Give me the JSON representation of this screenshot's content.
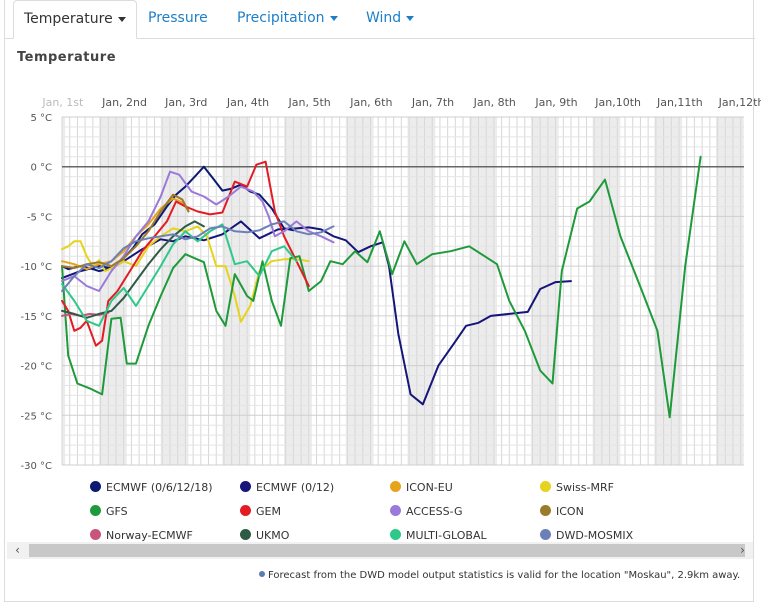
{
  "tabs": [
    {
      "label": "Temperature",
      "active": true,
      "dropdown": true
    },
    {
      "label": "Pressure",
      "active": false,
      "dropdown": false
    },
    {
      "label": "Precipitation",
      "active": false,
      "dropdown": true
    },
    {
      "label": "Wind",
      "active": false,
      "dropdown": true
    }
  ],
  "section_title": "Temperature",
  "chart_data": {
    "type": "line",
    "title": "",
    "xlabel": "",
    "ylabel": "",
    "x_tick_labels": [
      "Jan, 1st",
      "Jan, 2nd",
      "Jan, 3rd",
      "Jan, 4th",
      "Jan, 5th",
      "Jan, 6th",
      "Jan, 7th",
      "Jan, 8th",
      "Jan, 9th",
      "Jan,10th",
      "Jan,11th",
      "Jan,12th"
    ],
    "y_tick_labels": [
      "5 °C",
      "0 °C",
      "-5 °C",
      "-10 °C",
      "-15 °C",
      "-20 °C",
      "-25 °C",
      "-30 °C"
    ],
    "ylim": [
      -30,
      5
    ],
    "x_unit": "days since Jan 1st 00:00",
    "grid": true,
    "legend_placement": "bottom",
    "series": [
      {
        "name": "ECMWF (0/6/12/18)",
        "color": "#0c1a72",
        "values": [
          [
            1.0,
            -10.0
          ],
          [
            1.1,
            -10.3
          ],
          [
            1.3,
            -10.0
          ],
          [
            1.5,
            -10.3
          ],
          [
            1.6,
            -10.5
          ],
          [
            1.8,
            -10.2
          ],
          [
            2.0,
            -9.2
          ],
          [
            2.15,
            -8.2
          ],
          [
            2.3,
            -6.8
          ],
          [
            2.5,
            -5.8
          ],
          [
            2.7,
            -4.0
          ],
          [
            2.85,
            -2.8
          ],
          [
            3.0,
            -2.0
          ],
          [
            3.15,
            -1.0
          ],
          [
            3.3,
            0.0
          ],
          [
            3.45,
            -1.2
          ],
          [
            3.6,
            -2.4
          ],
          [
            3.75,
            -2.2
          ],
          [
            3.9,
            -1.8
          ],
          [
            4.05,
            -2.5
          ],
          [
            4.2,
            -2.8
          ],
          [
            4.4,
            -4.2
          ],
          [
            4.6,
            -6.2
          ],
          [
            4.75,
            -6.4
          ]
        ]
      },
      {
        "name": "ECMWF (0/12)",
        "color": "#15157a",
        "values": [
          [
            1.0,
            -11.2
          ],
          [
            1.3,
            -10.5
          ],
          [
            1.6,
            -10.0
          ],
          [
            1.8,
            -10.2
          ],
          [
            2.0,
            -9.5
          ],
          [
            2.3,
            -8.3
          ],
          [
            2.6,
            -7.3
          ],
          [
            2.8,
            -7.5
          ],
          [
            3.0,
            -7.0
          ],
          [
            3.3,
            -7.4
          ],
          [
            3.6,
            -6.8
          ],
          [
            3.9,
            -5.5
          ],
          [
            4.2,
            -7.2
          ],
          [
            4.5,
            -6.3
          ],
          [
            4.8,
            -6.2
          ],
          [
            5.0,
            -6.1
          ],
          [
            5.2,
            -6.3
          ],
          [
            5.4,
            -7.0
          ],
          [
            5.6,
            -7.4
          ],
          [
            5.8,
            -8.6
          ],
          [
            6.0,
            -8.0
          ],
          [
            6.2,
            -7.6
          ],
          [
            6.3,
            -10.0
          ],
          [
            6.45,
            -16.8
          ],
          [
            6.65,
            -22.9
          ],
          [
            6.85,
            -23.9
          ],
          [
            7.1,
            -20.0
          ],
          [
            7.35,
            -17.8
          ],
          [
            7.55,
            -16.0
          ],
          [
            7.75,
            -15.7
          ],
          [
            7.95,
            -15.0
          ],
          [
            8.25,
            -14.8
          ],
          [
            8.55,
            -14.6
          ],
          [
            8.75,
            -12.3
          ],
          [
            9.0,
            -11.6
          ],
          [
            9.25,
            -11.5
          ]
        ]
      },
      {
        "name": "ICON-EU",
        "color": "#e6a31b",
        "values": [
          [
            1.0,
            -9.5
          ],
          [
            1.2,
            -9.8
          ],
          [
            1.4,
            -10.3
          ],
          [
            1.6,
            -9.8
          ],
          [
            1.8,
            -9.5
          ],
          [
            2.0,
            -8.5
          ],
          [
            2.2,
            -7.0
          ],
          [
            2.4,
            -5.8
          ],
          [
            2.6,
            -4.2
          ],
          [
            2.8,
            -3.2
          ],
          [
            2.95,
            -3.6
          ],
          [
            3.05,
            -4.4
          ]
        ]
      },
      {
        "name": "Swiss-MRF",
        "color": "#e6d31b",
        "values": [
          [
            1.0,
            -8.3
          ],
          [
            1.1,
            -8.0
          ],
          [
            1.2,
            -7.5
          ],
          [
            1.3,
            -7.5
          ],
          [
            1.4,
            -9.0
          ],
          [
            1.5,
            -10.0
          ],
          [
            1.6,
            -9.4
          ],
          [
            1.7,
            -10.5
          ],
          [
            1.8,
            -10.2
          ],
          [
            2.0,
            -9.5
          ],
          [
            2.2,
            -10.0
          ],
          [
            2.4,
            -8.0
          ],
          [
            2.6,
            -7.0
          ],
          [
            2.8,
            -6.2
          ],
          [
            3.0,
            -6.5
          ],
          [
            3.2,
            -6.0
          ],
          [
            3.35,
            -7.0
          ],
          [
            3.5,
            -10.0
          ],
          [
            3.65,
            -10.0
          ],
          [
            3.8,
            -13.0
          ],
          [
            3.9,
            -15.6
          ],
          [
            4.05,
            -14.0
          ],
          [
            4.2,
            -10.5
          ],
          [
            4.4,
            -9.5
          ],
          [
            4.6,
            -9.3
          ],
          [
            4.8,
            -9.3
          ],
          [
            5.0,
            -9.5
          ]
        ]
      },
      {
        "name": "GFS",
        "color": "#1e9a3b",
        "values": [
          [
            1.0,
            -10.0
          ],
          [
            1.1,
            -19.0
          ],
          [
            1.25,
            -21.8
          ],
          [
            1.45,
            -22.3
          ],
          [
            1.65,
            -22.9
          ],
          [
            1.8,
            -15.3
          ],
          [
            1.95,
            -15.2
          ],
          [
            2.05,
            -19.8
          ],
          [
            2.2,
            -19.8
          ],
          [
            2.4,
            -16.0
          ],
          [
            2.6,
            -13.0
          ],
          [
            2.8,
            -10.2
          ],
          [
            3.0,
            -8.8
          ],
          [
            3.3,
            -9.6
          ],
          [
            3.5,
            -14.5
          ],
          [
            3.65,
            -16.0
          ],
          [
            3.8,
            -10.8
          ],
          [
            4.0,
            -13.0
          ],
          [
            4.1,
            -13.5
          ],
          [
            4.25,
            -9.5
          ],
          [
            4.4,
            -13.5
          ],
          [
            4.55,
            -16.0
          ],
          [
            4.7,
            -9.2
          ],
          [
            4.85,
            -9.0
          ],
          [
            5.0,
            -12.5
          ],
          [
            5.2,
            -11.5
          ],
          [
            5.35,
            -9.5
          ],
          [
            5.55,
            -9.8
          ],
          [
            5.75,
            -8.5
          ],
          [
            5.95,
            -9.6
          ],
          [
            6.15,
            -6.5
          ],
          [
            6.35,
            -10.8
          ],
          [
            6.55,
            -7.5
          ],
          [
            6.75,
            -9.8
          ],
          [
            7.0,
            -8.8
          ],
          [
            7.3,
            -8.5
          ],
          [
            7.6,
            -8.0
          ],
          [
            7.85,
            -9.0
          ],
          [
            8.05,
            -9.8
          ],
          [
            8.25,
            -13.5
          ],
          [
            8.5,
            -16.5
          ],
          [
            8.75,
            -20.5
          ],
          [
            8.95,
            -21.8
          ],
          [
            9.1,
            -10.5
          ],
          [
            9.35,
            -4.2
          ],
          [
            9.55,
            -3.5
          ],
          [
            9.8,
            -1.3
          ],
          [
            10.05,
            -7.0
          ],
          [
            10.4,
            -12.5
          ],
          [
            10.65,
            -16.5
          ],
          [
            10.85,
            -25.2
          ],
          [
            11.1,
            -10.0
          ],
          [
            11.35,
            1.0
          ]
        ]
      },
      {
        "name": "GEM",
        "color": "#e31b23",
        "values": [
          [
            1.0,
            -13.5
          ],
          [
            1.1,
            -14.5
          ],
          [
            1.2,
            -16.5
          ],
          [
            1.3,
            -16.2
          ],
          [
            1.4,
            -15.5
          ],
          [
            1.55,
            -18.0
          ],
          [
            1.65,
            -17.5
          ],
          [
            1.75,
            -13.5
          ],
          [
            1.9,
            -12.5
          ],
          [
            2.1,
            -10.5
          ],
          [
            2.3,
            -8.5
          ],
          [
            2.5,
            -7.0
          ],
          [
            2.7,
            -5.5
          ],
          [
            2.85,
            -3.5
          ],
          [
            3.0,
            -4.0
          ],
          [
            3.2,
            -4.5
          ],
          [
            3.4,
            -4.8
          ],
          [
            3.6,
            -4.6
          ],
          [
            3.8,
            -1.5
          ],
          [
            4.0,
            -2.0
          ],
          [
            4.15,
            0.2
          ],
          [
            4.3,
            0.5
          ],
          [
            4.45,
            -4.5
          ],
          [
            4.6,
            -7.0
          ],
          [
            4.8,
            -9.5
          ],
          [
            5.0,
            -12.0
          ]
        ]
      },
      {
        "name": "ACCESS-G",
        "color": "#9a79d9",
        "values": [
          [
            1.0,
            -11.5
          ],
          [
            1.2,
            -11.0
          ],
          [
            1.4,
            -12.0
          ],
          [
            1.6,
            -12.5
          ],
          [
            1.8,
            -10.5
          ],
          [
            2.0,
            -9.0
          ],
          [
            2.2,
            -7.0
          ],
          [
            2.4,
            -5.5
          ],
          [
            2.6,
            -3.0
          ],
          [
            2.75,
            -0.5
          ],
          [
            2.9,
            -0.8
          ],
          [
            3.1,
            -2.5
          ],
          [
            3.3,
            -3.0
          ],
          [
            3.5,
            -3.8
          ],
          [
            3.7,
            -3.0
          ],
          [
            3.9,
            -2.0
          ],
          [
            4.1,
            -2.5
          ],
          [
            4.25,
            -3.5
          ],
          [
            4.35,
            -5.0
          ],
          [
            4.45,
            -7.0
          ],
          [
            4.6,
            -6.5
          ],
          [
            4.8,
            -5.5
          ],
          [
            5.0,
            -6.5
          ],
          [
            5.2,
            -7.0
          ],
          [
            5.4,
            -7.6
          ]
        ]
      },
      {
        "name": "ICON",
        "color": "#9c7a2b",
        "values": [
          [
            1.0,
            -10.0
          ],
          [
            1.2,
            -10.2
          ],
          [
            1.4,
            -9.8
          ],
          [
            1.6,
            -9.6
          ],
          [
            1.8,
            -10.0
          ],
          [
            2.0,
            -9.2
          ],
          [
            2.2,
            -8.0
          ],
          [
            2.4,
            -6.5
          ],
          [
            2.6,
            -4.5
          ],
          [
            2.8,
            -2.8
          ],
          [
            2.95,
            -3.3
          ],
          [
            3.05,
            -4.5
          ]
        ]
      },
      {
        "name": "Norway-ECMWF",
        "color": "#c9557b",
        "values": [
          [
            1.0,
            -15.0
          ],
          [
            1.15,
            -14.8
          ],
          [
            1.3,
            -15.0
          ],
          [
            1.45,
            -14.8
          ],
          [
            1.6,
            -14.9
          ],
          [
            1.75,
            -14.7
          ]
        ]
      },
      {
        "name": "UKMO",
        "color": "#2f5b46",
        "values": [
          [
            1.0,
            -14.5
          ],
          [
            1.2,
            -14.8
          ],
          [
            1.4,
            -15.2
          ],
          [
            1.6,
            -14.8
          ],
          [
            1.8,
            -14.5
          ],
          [
            2.0,
            -13.2
          ],
          [
            2.2,
            -11.5
          ],
          [
            2.4,
            -9.8
          ],
          [
            2.6,
            -8.3
          ],
          [
            2.8,
            -7.0
          ],
          [
            3.0,
            -6.0
          ],
          [
            3.15,
            -5.5
          ],
          [
            3.3,
            -6.0
          ]
        ]
      },
      {
        "name": "MULTI-GLOBAL",
        "color": "#2ec98a",
        "values": [
          [
            1.0,
            -11.8
          ],
          [
            1.2,
            -13.5
          ],
          [
            1.4,
            -15.5
          ],
          [
            1.6,
            -16.0
          ],
          [
            1.8,
            -13.5
          ],
          [
            2.0,
            -12.2
          ],
          [
            2.2,
            -14.0
          ],
          [
            2.4,
            -12.0
          ],
          [
            2.6,
            -10.0
          ],
          [
            2.8,
            -7.8
          ],
          [
            3.0,
            -6.5
          ],
          [
            3.2,
            -7.5
          ],
          [
            3.4,
            -6.5
          ],
          [
            3.6,
            -5.8
          ],
          [
            3.8,
            -9.8
          ],
          [
            4.0,
            -9.5
          ],
          [
            4.2,
            -11.0
          ],
          [
            4.4,
            -8.5
          ],
          [
            4.6,
            -8.0
          ],
          [
            4.8,
            -9.5
          ]
        ]
      },
      {
        "name": "DWD-MOSMIX",
        "color": "#6b80b8",
        "values": [
          [
            1.0,
            -12.5
          ],
          [
            1.2,
            -11.0
          ],
          [
            1.4,
            -9.8
          ],
          [
            1.6,
            -10.2
          ],
          [
            1.8,
            -9.5
          ],
          [
            2.0,
            -8.2
          ],
          [
            2.2,
            -7.5
          ],
          [
            2.4,
            -7.2
          ],
          [
            2.6,
            -7.0
          ],
          [
            2.8,
            -6.8
          ],
          [
            3.0,
            -7.3
          ],
          [
            3.2,
            -7.0
          ],
          [
            3.4,
            -6.2
          ],
          [
            3.6,
            -6.0
          ],
          [
            3.8,
            -6.5
          ],
          [
            4.0,
            -6.6
          ],
          [
            4.2,
            -6.4
          ],
          [
            4.4,
            -5.8
          ],
          [
            4.6,
            -5.5
          ],
          [
            4.8,
            -6.5
          ],
          [
            5.0,
            -6.8
          ],
          [
            5.2,
            -6.6
          ],
          [
            5.4,
            -6.0
          ]
        ]
      }
    ]
  },
  "scrollbar": {
    "left_arrow": "‹",
    "right_arrow": "›"
  },
  "footnote": "Forecast from the DWD model output statistics is valid for the location \"Moskau\", 2.9km away."
}
